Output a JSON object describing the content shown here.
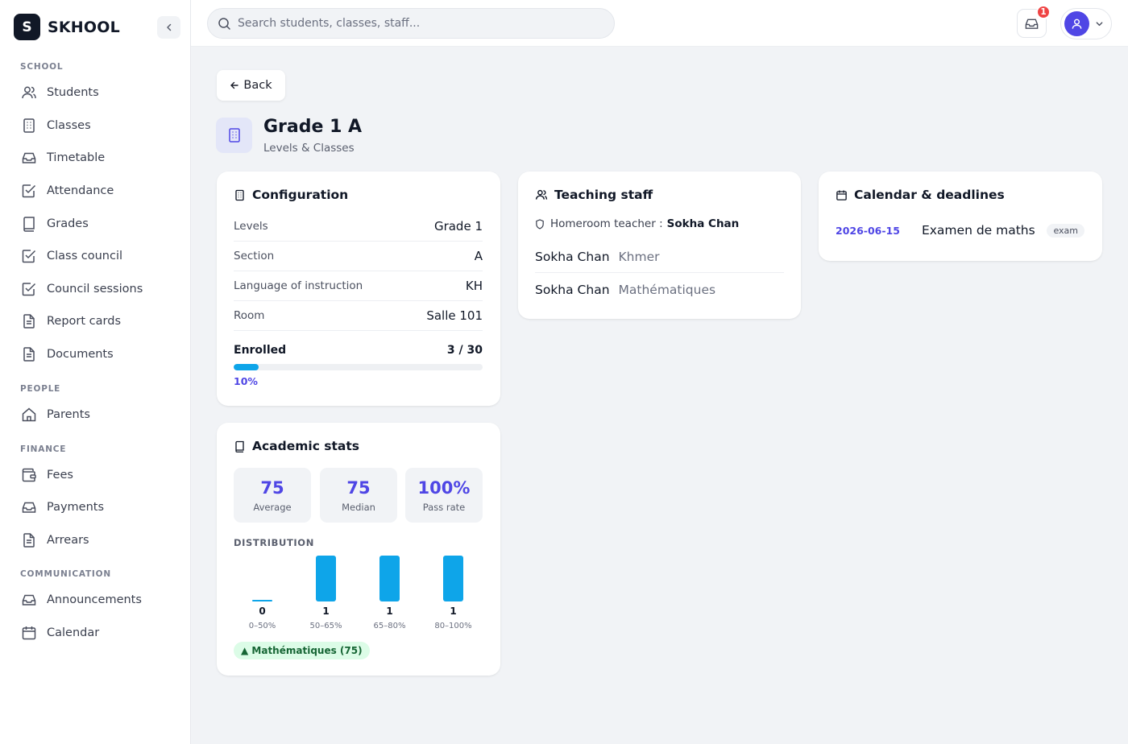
{
  "brand": {
    "logo_letter": "S",
    "name": "SKHOOL"
  },
  "sidebar": {
    "sections": [
      {
        "title": "SCHOOL",
        "items": [
          {
            "label": "Students",
            "icon": "users-icon"
          },
          {
            "label": "Classes",
            "icon": "building-icon"
          },
          {
            "label": "Timetable",
            "icon": "inbox-icon"
          },
          {
            "label": "Attendance",
            "icon": "checkbox-icon"
          },
          {
            "label": "Grades",
            "icon": "book-icon"
          },
          {
            "label": "Class council",
            "icon": "checkbox-icon"
          },
          {
            "label": "Council sessions",
            "icon": "checkbox-icon"
          },
          {
            "label": "Report cards",
            "icon": "file-icon"
          },
          {
            "label": "Documents",
            "icon": "file-icon"
          }
        ]
      },
      {
        "title": "PEOPLE",
        "items": [
          {
            "label": "Parents",
            "icon": "home-icon"
          }
        ]
      },
      {
        "title": "FINANCE",
        "items": [
          {
            "label": "Fees",
            "icon": "wallet-icon"
          },
          {
            "label": "Payments",
            "icon": "inbox-icon"
          },
          {
            "label": "Arrears",
            "icon": "file-icon"
          }
        ]
      },
      {
        "title": "COMMUNICATION",
        "items": [
          {
            "label": "Announcements",
            "icon": "inbox-icon"
          },
          {
            "label": "Calendar",
            "icon": "calendar-icon"
          }
        ]
      }
    ]
  },
  "topbar": {
    "search_placeholder": "Search students, classes, staff...",
    "notification_count": "1"
  },
  "page": {
    "back_label": "Back",
    "title": "Grade 1 A",
    "subtitle": "Levels & Classes"
  },
  "configuration": {
    "title": "Configuration",
    "rows": [
      {
        "key": "Levels",
        "value": "Grade 1"
      },
      {
        "key": "Section",
        "value": "A"
      },
      {
        "key": "Language of instruction",
        "value": "KH"
      },
      {
        "key": "Room",
        "value": "Salle 101"
      }
    ],
    "enrolled_label": "Enrolled",
    "enrolled_value": "3 / 30",
    "enrolled_fraction": 0.1,
    "enrolled_pct_label": "10%"
  },
  "academic_stats": {
    "title": "Academic stats",
    "stats": [
      {
        "value": "75",
        "caption": "Average"
      },
      {
        "value": "75",
        "caption": "Median"
      },
      {
        "value": "100%",
        "caption": "Pass rate"
      }
    ],
    "distribution_label": "DISTRIBUTION",
    "top_subject": "▲ Mathématiques (75)"
  },
  "chart_data": {
    "type": "bar",
    "categories": [
      "0–50%",
      "50–65%",
      "65–80%",
      "80–100%"
    ],
    "values": [
      0,
      1,
      1,
      1
    ],
    "ylim": [
      0,
      1
    ],
    "color": "#0ea5e9"
  },
  "teaching_staff": {
    "title": "Teaching staff",
    "homeroom_label": "Homeroom teacher :",
    "homeroom_name": "Sokha Chan",
    "members": [
      {
        "name": "Sokha Chan",
        "subject": "Khmer"
      },
      {
        "name": "Sokha Chan",
        "subject": "Mathématiques"
      }
    ]
  },
  "calendar": {
    "title": "Calendar & deadlines",
    "events": [
      {
        "date": "2026-06-15",
        "name": "Examen de maths",
        "tag": "exam"
      }
    ]
  },
  "colors": {
    "accent": "#4f46e5",
    "bar": "#0ea5e9",
    "danger": "#ef4444",
    "success_bg": "#dcfce7"
  }
}
